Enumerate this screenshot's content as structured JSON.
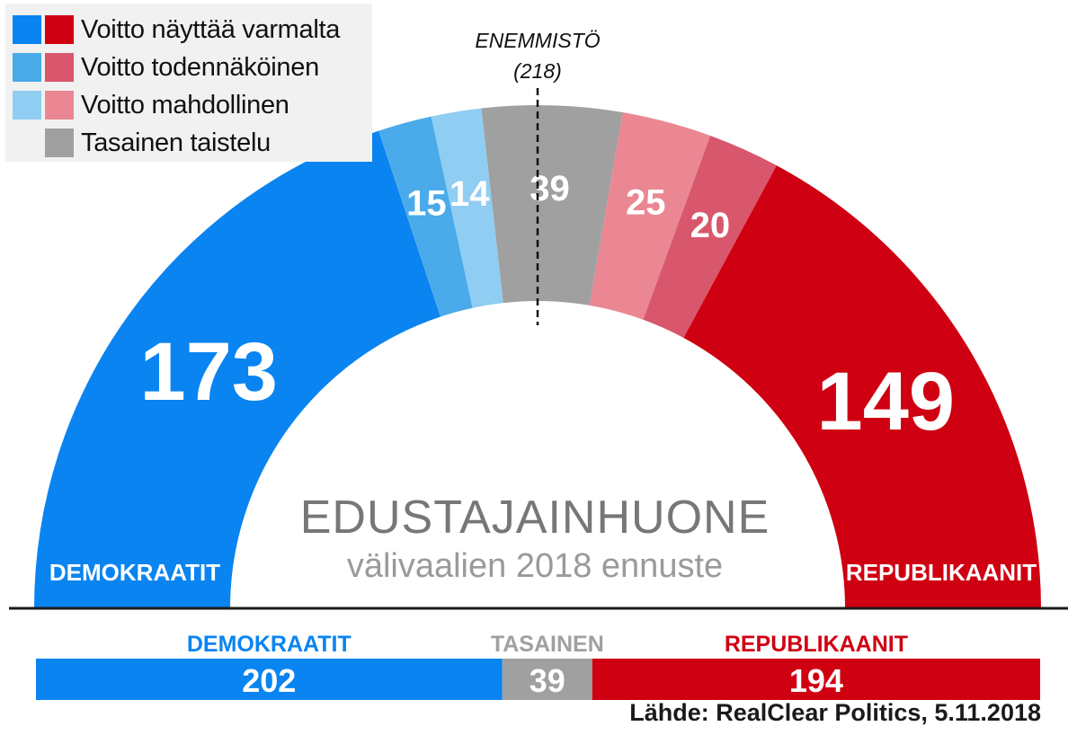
{
  "legend": [
    {
      "label": "Voitto näyttää varmalta",
      "colors": [
        "#0a84f0",
        "#cf0011"
      ]
    },
    {
      "label": "Voitto todennäköinen",
      "colors": [
        "#4aaaea",
        "#d9576c"
      ]
    },
    {
      "label": "Voitto mahdollinen",
      "colors": [
        "#90cdf2",
        "#ea8793"
      ]
    },
    {
      "label": "Tasainen taistelu",
      "colors": [
        "#a0a0a0"
      ]
    }
  ],
  "majority": {
    "label": "ENEMMISTÖ",
    "value_label": "(218)",
    "seats": 218
  },
  "source": "Lähde: RealClear Politics, 5.11.2018",
  "chart_data": {
    "type": "semicircle-parliament",
    "total_seats": 435,
    "title": "EDUSTAJAINHUONE",
    "subtitle": "välivaalien 2018 ennuste",
    "left_party": "DEMOKRAATIT",
    "right_party": "REPUBLIKAANIT",
    "segments": [
      {
        "category": "Voitto näyttää varmalta",
        "party": "DEMOKRAATIT",
        "value": 173,
        "color": "#0a84f0"
      },
      {
        "category": "Voitto todennäköinen",
        "party": "DEMOKRAATIT",
        "value": 15,
        "color": "#4aaaea"
      },
      {
        "category": "Voitto mahdollinen",
        "party": "DEMOKRAATIT",
        "value": 14,
        "color": "#90cdf2"
      },
      {
        "category": "Tasainen taistelu",
        "party": "",
        "value": 39,
        "color": "#a0a0a0"
      },
      {
        "category": "Voitto mahdollinen",
        "party": "REPUBLIKAANIT",
        "value": 25,
        "color": "#ea8793"
      },
      {
        "category": "Voitto todennäköinen",
        "party": "REPUBLIKAANIT",
        "value": 20,
        "color": "#d9576c"
      },
      {
        "category": "Voitto näyttää varmalta",
        "party": "REPUBLIKAANIT",
        "value": 149,
        "color": "#cf0011"
      }
    ],
    "totals": [
      {
        "label": "DEMOKRAATIT",
        "value": 202,
        "color": "#0a84f0"
      },
      {
        "label": "TASAINEN",
        "value": 39,
        "color": "#a0a0a0"
      },
      {
        "label": "REPUBLIKAANIT",
        "value": 194,
        "color": "#cf0011"
      }
    ]
  }
}
